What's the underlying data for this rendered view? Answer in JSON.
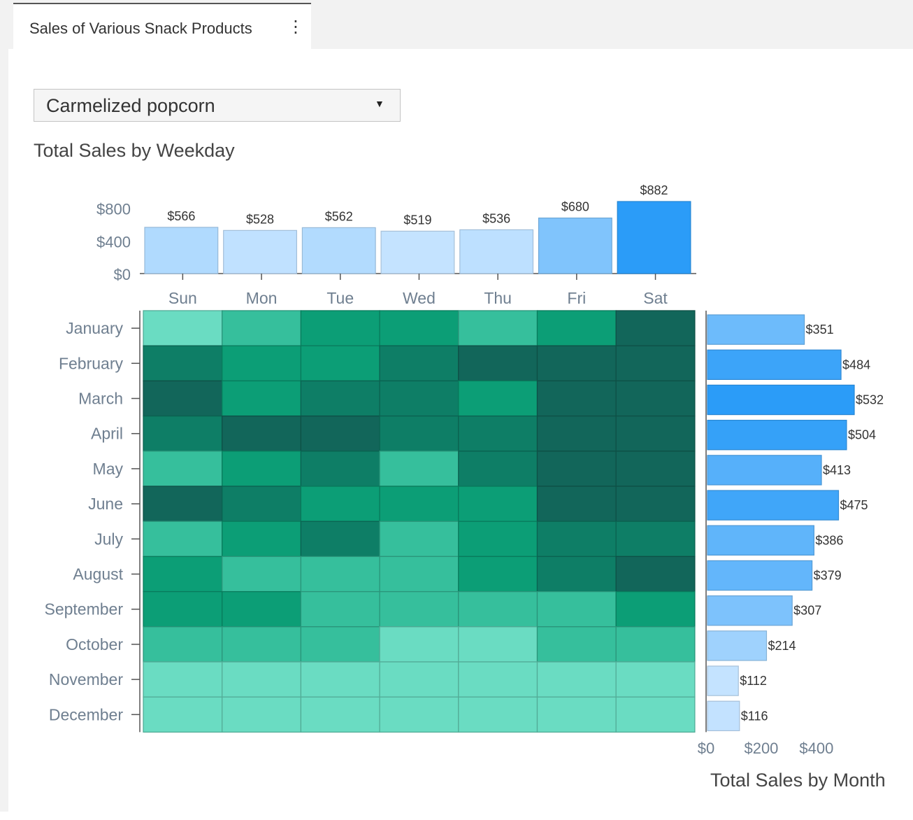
{
  "tab": {
    "title": "Sales of Various Snack Products",
    "menu_icon": "more-vertical-icon"
  },
  "product_select": {
    "value": "Carmelized popcorn",
    "caret_icon": "caret-down-icon"
  },
  "chart_data": [
    {
      "type": "bar",
      "title": "Total Sales by Weekday",
      "categories": [
        "Sun",
        "Mon",
        "Tue",
        "Wed",
        "Thu",
        "Fri",
        "Sat"
      ],
      "values": [
        566,
        528,
        562,
        519,
        536,
        680,
        882
      ],
      "data_labels": [
        "$566",
        "$528",
        "$562",
        "$519",
        "$536",
        "$680",
        "$882"
      ],
      "ylim": [
        0,
        882
      ],
      "yticks": [
        0,
        400,
        800
      ],
      "ytick_labels": [
        "$0",
        "$400",
        "$800"
      ],
      "bar_color_low": "#c4e3ff",
      "bar_color_high": "#2b9cf8"
    },
    {
      "type": "heatmap",
      "x": [
        "Sun",
        "Mon",
        "Tue",
        "Wed",
        "Thu",
        "Fri",
        "Sat"
      ],
      "y": [
        "January",
        "February",
        "March",
        "April",
        "May",
        "June",
        "July",
        "August",
        "September",
        "October",
        "November",
        "December"
      ],
      "values": [
        [
          1,
          2,
          3,
          3,
          2,
          3,
          5
        ],
        [
          4,
          3,
          3,
          4,
          5,
          5,
          5
        ],
        [
          5,
          3,
          4,
          4,
          3,
          5,
          5
        ],
        [
          4,
          5,
          5,
          4,
          4,
          5,
          5
        ],
        [
          2,
          3,
          4,
          2,
          4,
          5,
          5
        ],
        [
          5,
          4,
          3,
          3,
          3,
          5,
          5
        ],
        [
          2,
          3,
          4,
          2,
          3,
          4,
          4
        ],
        [
          3,
          2,
          2,
          2,
          3,
          4,
          5
        ],
        [
          3,
          3,
          2,
          2,
          2,
          2,
          3
        ],
        [
          2,
          2,
          2,
          1,
          1,
          2,
          2
        ],
        [
          1,
          1,
          1,
          1,
          1,
          1,
          1
        ],
        [
          1,
          1,
          1,
          1,
          1,
          1,
          1
        ]
      ],
      "color_scale": [
        "#6adcc2",
        "#36bf9c",
        "#0c9e76",
        "#0e7e66",
        "#12665a"
      ]
    },
    {
      "type": "bar",
      "orientation": "horizontal",
      "title": "Total Sales by Month",
      "categories": [
        "January",
        "February",
        "March",
        "April",
        "May",
        "June",
        "July",
        "August",
        "September",
        "October",
        "November",
        "December"
      ],
      "values": [
        351,
        484,
        532,
        504,
        413,
        475,
        386,
        379,
        307,
        214,
        112,
        116
      ],
      "data_labels": [
        "$351",
        "$484",
        "$532",
        "$504",
        "$413",
        "$475",
        "$386",
        "$379",
        "$307",
        "$214",
        "$112",
        "$116"
      ],
      "xlim": [
        0,
        532
      ],
      "xticks": [
        0,
        200,
        400
      ],
      "xtick_labels": [
        "$0",
        "$200",
        "$400"
      ],
      "bar_color_low": "#c4e3ff",
      "bar_color_high": "#2b9cf8"
    }
  ]
}
